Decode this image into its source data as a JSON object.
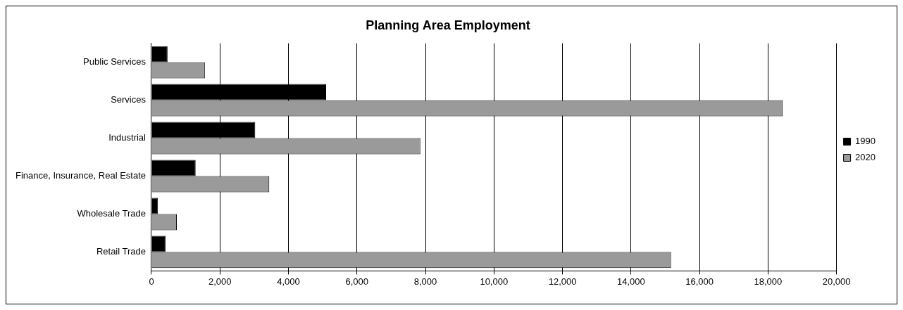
{
  "chart_data": {
    "type": "bar",
    "orientation": "horizontal",
    "title": "Planning Area Employment",
    "categories": [
      "Public Services",
      "Services",
      "Industrial",
      "Finance, Insurance, Real Estate",
      "Wholesale Trade",
      "Retail Trade"
    ],
    "series": [
      {
        "name": "1990",
        "color": "#000000",
        "values": [
          470,
          5100,
          3030,
          1290,
          190,
          410
        ]
      },
      {
        "name": "2020",
        "color": "#9a9a9a",
        "values": [
          1560,
          18430,
          7850,
          3440,
          740,
          15170
        ]
      }
    ],
    "xlim": [
      0,
      20000
    ],
    "xticks": [
      0,
      {
        "value": 2000,
        "label": "2,000"
      },
      {
        "value": 4000,
        "label": "4,000"
      },
      {
        "value": 6000,
        "label": "6,000"
      },
      {
        "value": 8000,
        "label": "8,000"
      },
      {
        "value": 10000,
        "label": "10,000"
      },
      {
        "value": 12000,
        "label": "12,000"
      },
      {
        "value": 14000,
        "label": "14,000"
      },
      {
        "value": 16000,
        "label": "16,000"
      },
      {
        "value": 18000,
        "label": "18,000"
      },
      {
        "value": 20000,
        "label": "20,000"
      }
    ],
    "grid": "x",
    "legend": "right"
  }
}
